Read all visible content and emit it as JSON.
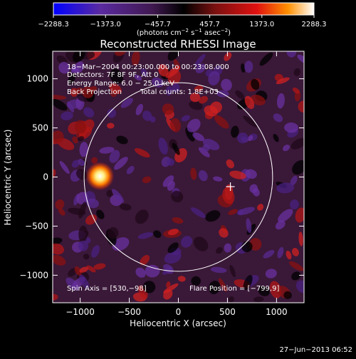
{
  "colorbar": {
    "ticks": [
      "−2288.3",
      "−1373.0",
      "−457.7",
      "457.7",
      "1373.0",
      "2288.3"
    ],
    "tick_values": [
      -2288.3,
      -1373.0,
      -457.7,
      457.7,
      1373.0,
      2288.3
    ],
    "units_parts": [
      "(photons cm",
      "−2",
      " s",
      "−1",
      " asec",
      "−2",
      ")"
    ],
    "colors": [
      "#0000ff",
      "#5a2aa0",
      "#401850",
      "#000000",
      "#7a1010",
      "#e01010",
      "#ff9000",
      "#ffffff"
    ]
  },
  "chart_data": {
    "type": "heatmap",
    "title": "Reconstructed RHESSI Image",
    "xlabel": "Heliocentric X (arcsec)",
    "ylabel": "Heliocentric Y (arcsec)",
    "xlim": [
      -1280,
      1280
    ],
    "ylim": [
      -1280,
      1280
    ],
    "xticks": [
      -1000,
      -500,
      0,
      500,
      1000
    ],
    "yticks": [
      -1000,
      -500,
      0,
      500,
      1000
    ],
    "xtick_labels": [
      "−1000",
      "−500",
      "0",
      "500",
      "1000"
    ],
    "ytick_labels": [
      "−1000",
      "−500",
      "0",
      "500",
      "1000"
    ],
    "solar_limb_radius_arcsec": 960,
    "bright_source": {
      "x": -799,
      "y": 9
    },
    "marker_cross": {
      "x": 530,
      "y": -98
    },
    "annotations": {
      "line1": "18−Mar−2004 00:23:00.000 to 00:23:08.000",
      "line2": "Detectors: 7F 8F 9F, Att 0",
      "line3": "Energy Range: 6.0 − 25.0 keV",
      "line4a": "Back Projection",
      "line4b": "Total counts: 1.8E+03",
      "spin_axis": "Spin Axis = [530,−98]",
      "flare_position": "Flare Position = [−799,9]"
    },
    "colors": {
      "limb": "#ffffff",
      "cross": "#ffffff"
    }
  },
  "footer": {
    "timestamp": "27−Jun−2013 06:52"
  }
}
